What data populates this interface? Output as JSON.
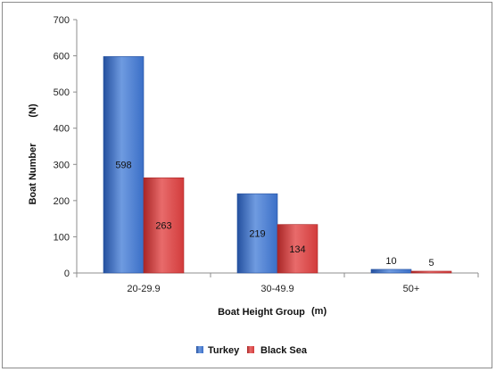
{
  "chart_data": {
    "type": "bar",
    "categories": [
      "20-29.9",
      "30-49.9",
      "50+"
    ],
    "series": [
      {
        "name": "Turkey",
        "values": [
          598,
          219,
          10
        ],
        "color": "#3b6fc7"
      },
      {
        "name": "Black Sea",
        "values": [
          263,
          134,
          5
        ],
        "color": "#d23b3b"
      }
    ],
    "data_labels": [
      [
        "598",
        "263"
      ],
      [
        "219",
        "134"
      ],
      [
        "10",
        "5"
      ]
    ],
    "xlabel": "Boat Height Group",
    "xlabel_unit": "(m)",
    "ylabel": "Boat Number",
    "ylabel_unit": "(N)",
    "ylim": [
      0,
      700
    ],
    "yticks": [
      0,
      100,
      200,
      300,
      400,
      500,
      600,
      700
    ],
    "legend_position": "bottom",
    "grid": false
  }
}
